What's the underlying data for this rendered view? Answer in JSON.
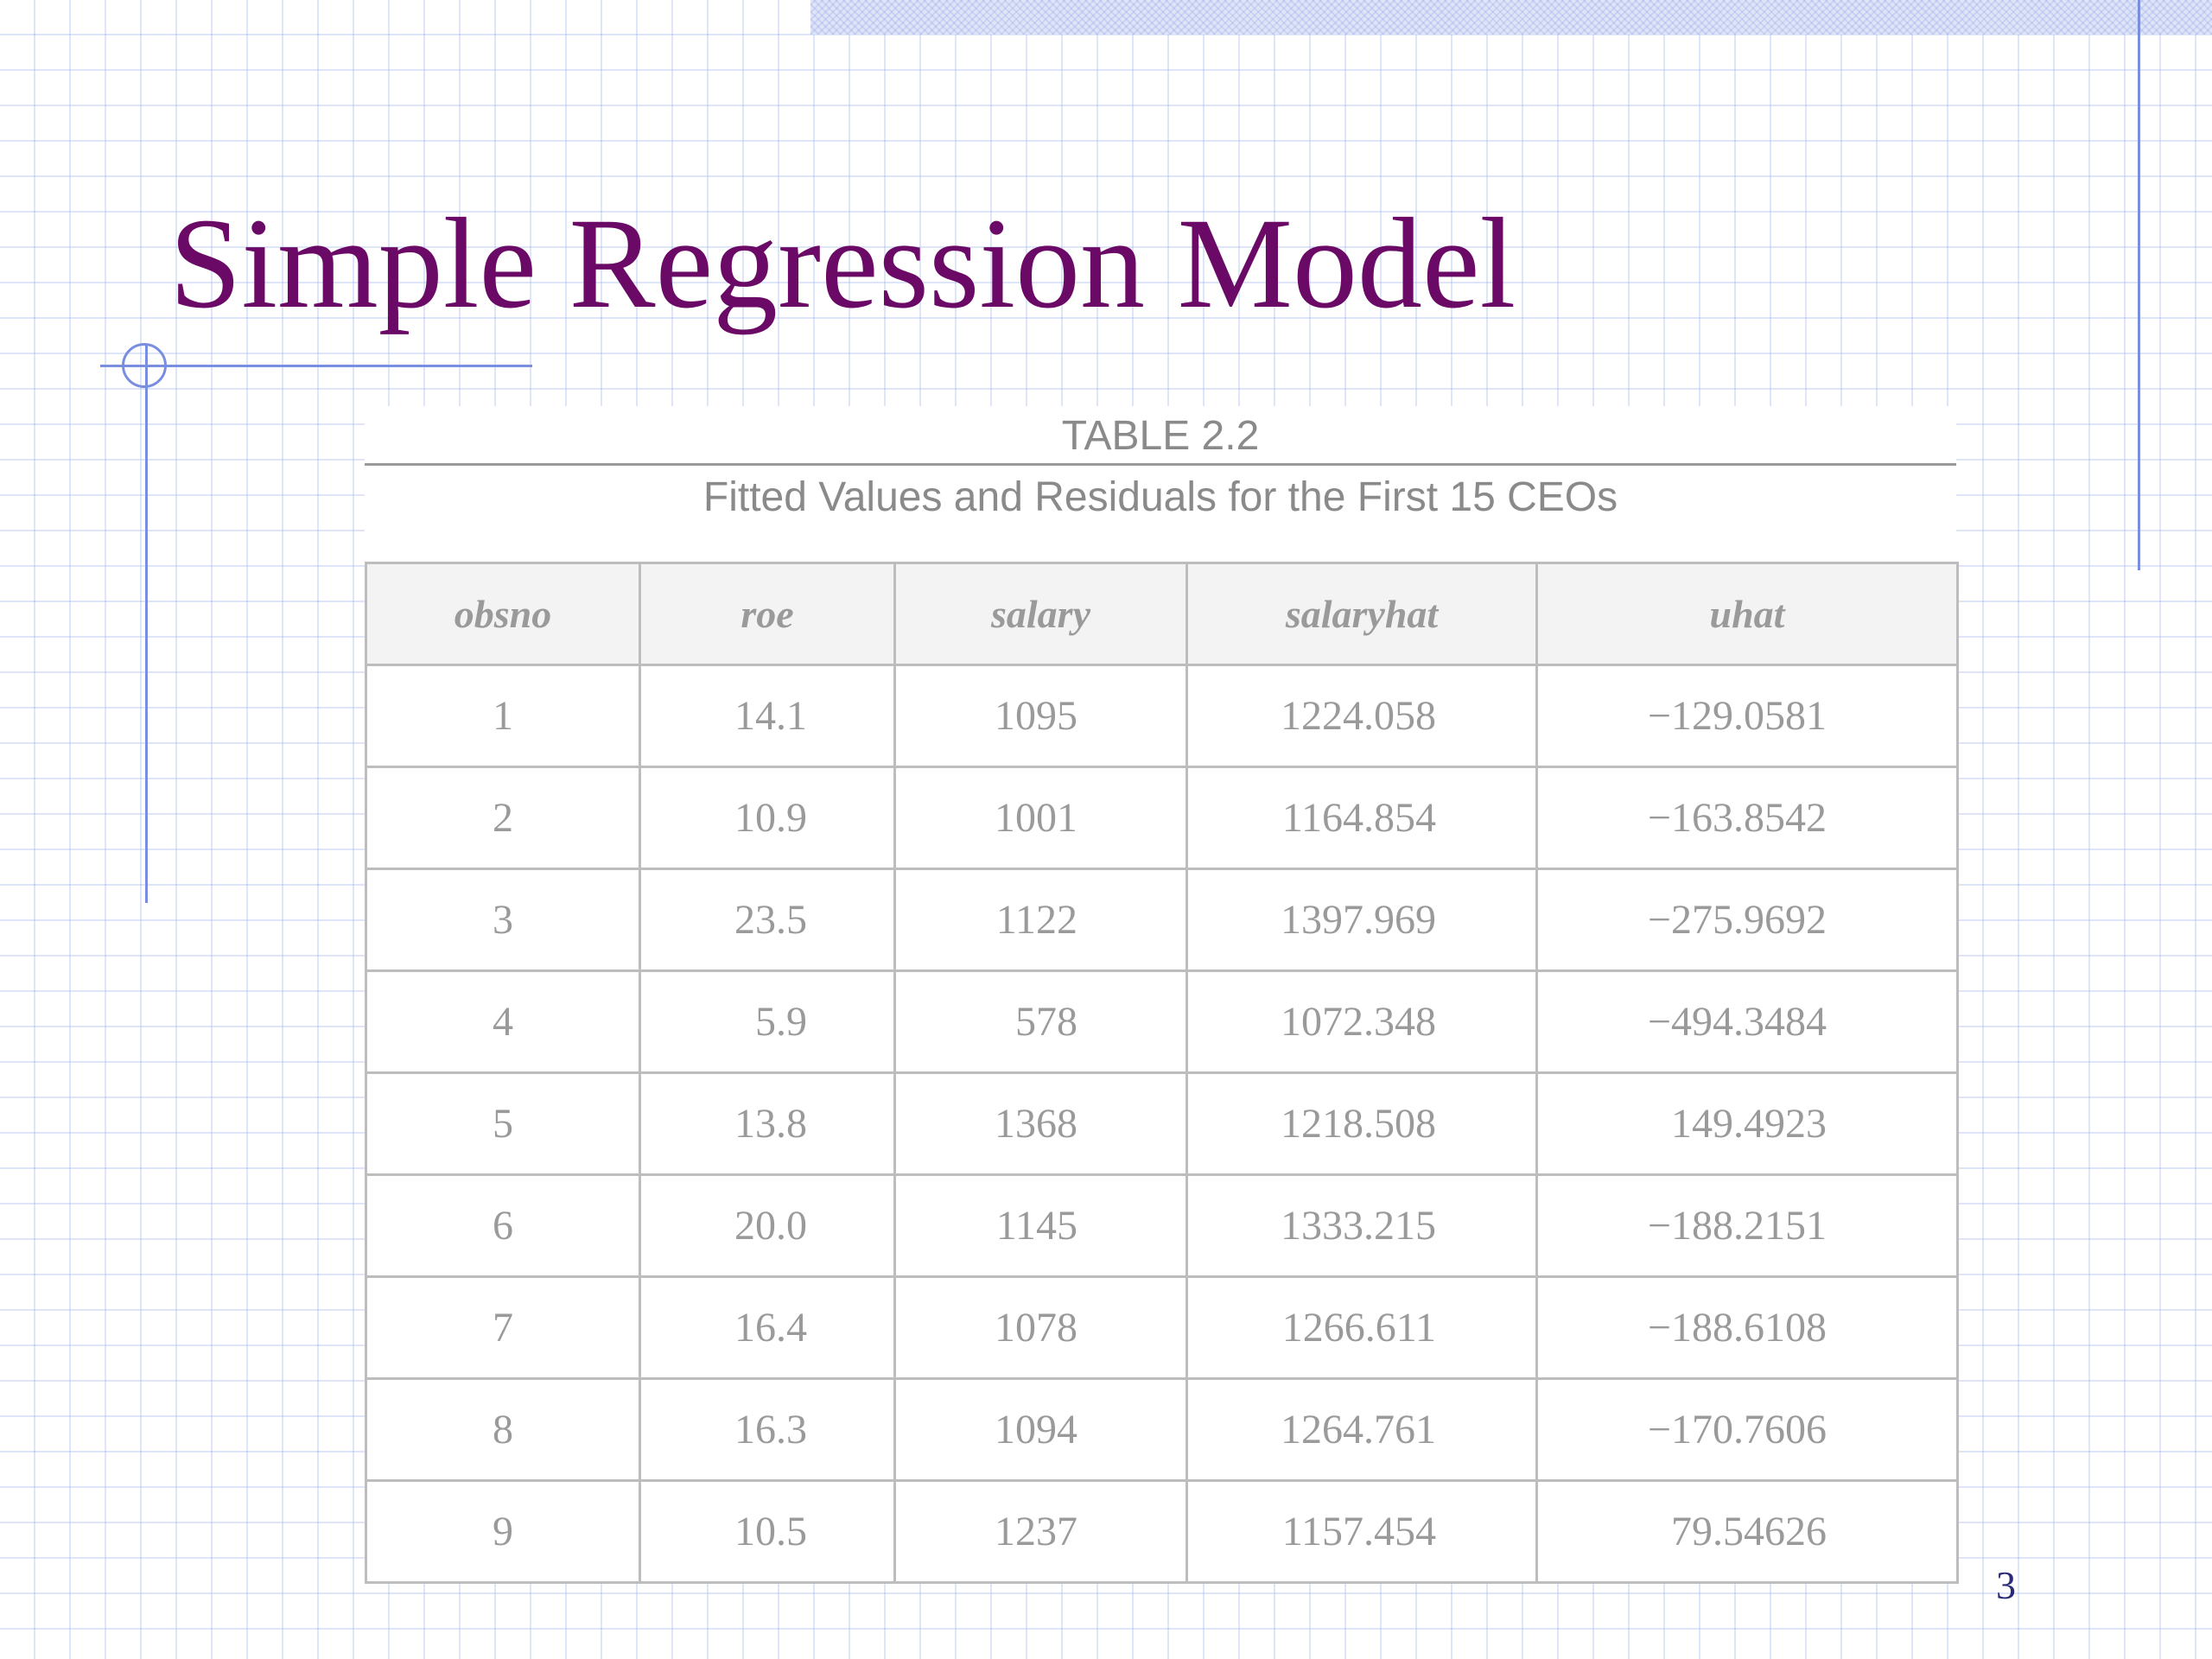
{
  "slide": {
    "title": "Simple Regression Model",
    "page_number": "3"
  },
  "table": {
    "number": "TABLE 2.2",
    "caption": "Fitted Values and Residuals for the First 15 CEOs",
    "headers": [
      "obsno",
      "roe",
      "salary",
      "salaryhat",
      "uhat"
    ],
    "rows": [
      [
        "1",
        "14.1",
        "1095",
        "1224.058",
        "−129.0581"
      ],
      [
        "2",
        "10.9",
        "1001",
        "1164.854",
        "−163.8542"
      ],
      [
        "3",
        "23.5",
        "1122",
        "1397.969",
        "−275.9692"
      ],
      [
        "4",
        "5.9",
        "578",
        "1072.348",
        "−494.3484"
      ],
      [
        "5",
        "13.8",
        "1368",
        "1218.508",
        "149.4923"
      ],
      [
        "6",
        "20.0",
        "1145",
        "1333.215",
        "−188.2151"
      ],
      [
        "7",
        "16.4",
        "1078",
        "1266.611",
        "−188.6108"
      ],
      [
        "8",
        "16.3",
        "1094",
        "1264.761",
        "−170.7606"
      ],
      [
        "9",
        "10.5",
        "1237",
        "1157.454",
        "79.54626"
      ]
    ]
  },
  "colors": {
    "title": "#6b0a66",
    "accent_line": "#7a8ee0",
    "table_text": "#9a9a9a",
    "page_number": "#2b2a78"
  }
}
